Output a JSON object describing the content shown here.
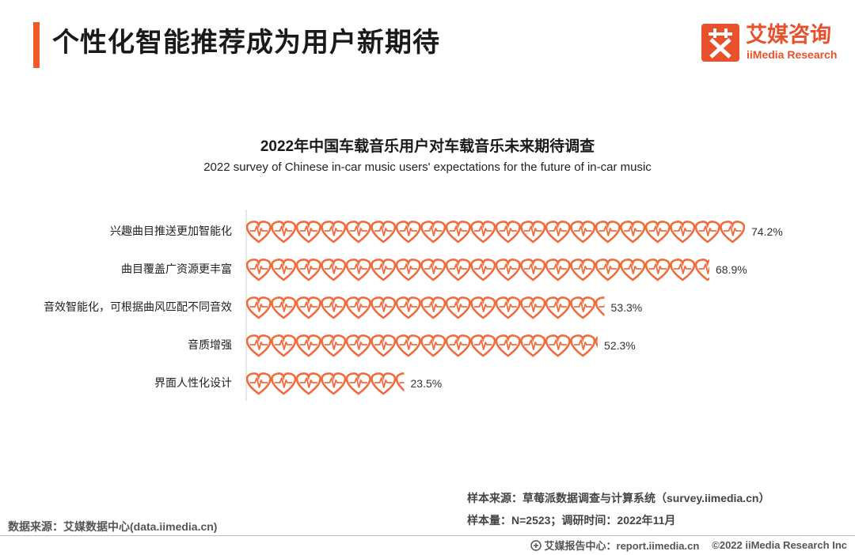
{
  "header": {
    "title": "个性化智能推荐成为用户新期待",
    "logo_text_cn": "艾媒咨询",
    "logo_text_en": "iiMedia Research"
  },
  "chart_data": {
    "type": "bar",
    "title": "2022年中国车载音乐用户对车载音乐未来期待调查",
    "subtitle": "2022 survey of Chinese in-car music users' expectations for the future of in-car music",
    "categories": [
      "兴趣曲目推送更加智能化",
      "曲目覆盖广资源更丰富",
      "音效智能化，可根据曲风匹配不同音效",
      "音质增强",
      "界面人性化设计"
    ],
    "values": [
      74.2,
      68.9,
      53.3,
      52.3,
      23.5
    ],
    "value_labels": [
      "74.2%",
      "68.9%",
      "53.3%",
      "52.3%",
      "23.5%"
    ],
    "unit": "%",
    "xlim": [
      0,
      74.2
    ],
    "mark": "heart-icon",
    "bar_color": "#f26b3a"
  },
  "footer": {
    "data_source": "数据来源：艾媒数据中心(data.iimedia.cn)",
    "sample_source": "样本来源：草莓派数据调查与计算系统（survey.iimedia.cn）",
    "sample_size": "样本量：N=2523；调研时间：2022年11月",
    "copyright_site": "艾媒报告中心：report.iimedia.cn",
    "copyright": "©2022  iiMedia Research  Inc"
  }
}
